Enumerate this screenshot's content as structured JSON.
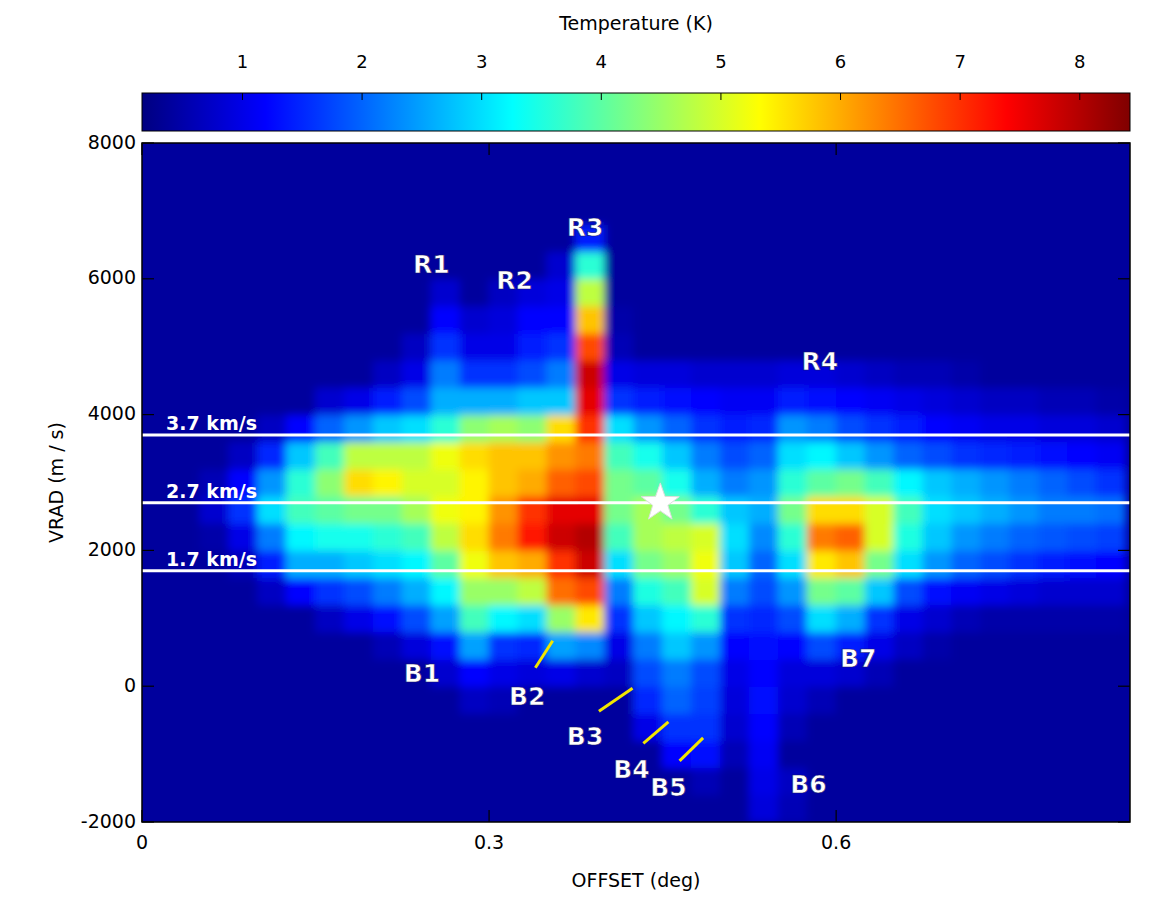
{
  "chart_data": {
    "type": "heatmap",
    "x_label": "OFFSET (deg)",
    "y_label": "VRAD (m / s)",
    "xlim": [
      0,
      0.854
    ],
    "ylim": [
      -2000,
      8000
    ],
    "xticks": [
      0,
      0.3,
      0.6
    ],
    "yticks": [
      -2000,
      0,
      2000,
      4000,
      6000,
      8000
    ],
    "color": "jet",
    "colorbar": {
      "label": "Temperature (K)",
      "range": [
        0.16,
        8.42
      ],
      "ticks": [
        1,
        2,
        3,
        4,
        5,
        6,
        7,
        8
      ]
    },
    "x": [
      0.0125,
      0.0375,
      0.0625,
      0.0875,
      0.1125,
      0.1375,
      0.1625,
      0.1875,
      0.2125,
      0.2375,
      0.2625,
      0.2875,
      0.3125,
      0.3375,
      0.3625,
      0.3875,
      0.4125,
      0.4375,
      0.4625,
      0.4875,
      0.5125,
      0.5375,
      0.5625,
      0.5875,
      0.6125,
      0.6375,
      0.6625,
      0.6875,
      0.7125,
      0.7375,
      0.7625,
      0.7875,
      0.8125,
      0.8375
    ],
    "y": [
      -1800,
      -1400,
      -1000,
      -600,
      -200,
      200,
      600,
      1000,
      1400,
      1800,
      2200,
      2600,
      3000,
      3400,
      3800,
      4200,
      4600,
      5000,
      5400,
      5800,
      6200,
      6600,
      7000,
      7400,
      7800
    ],
    "cells": [
      [
        0.4,
        0.4,
        0.4,
        0.4,
        0.4,
        0.4,
        0.4,
        0.4,
        0.4,
        0.4,
        0.4,
        0.4,
        0.4,
        0.4,
        0.4,
        0.4,
        0.4,
        0.4,
        0.4,
        0.4,
        0.4,
        0.9,
        0.6,
        0.4,
        0.4,
        0.4,
        0.4,
        0.4,
        0.4,
        0.4,
        0.4,
        0.4,
        0.4,
        0.4
      ],
      [
        0.4,
        0.4,
        0.4,
        0.4,
        0.4,
        0.4,
        0.4,
        0.4,
        0.4,
        0.4,
        0.4,
        0.4,
        0.4,
        0.4,
        0.4,
        0.4,
        0.4,
        0.4,
        0.4,
        0.6,
        0.4,
        1.0,
        0.7,
        0.4,
        0.4,
        0.4,
        0.4,
        0.4,
        0.4,
        0.4,
        0.4,
        0.4,
        0.4,
        0.4
      ],
      [
        0.4,
        0.4,
        0.4,
        0.4,
        0.4,
        0.4,
        0.4,
        0.4,
        0.4,
        0.4,
        0.4,
        0.4,
        0.4,
        0.4,
        0.4,
        0.4,
        0.4,
        0.4,
        1.2,
        1.3,
        0.6,
        1.1,
        0.4,
        0.4,
        0.4,
        0.4,
        0.4,
        0.4,
        0.4,
        0.4,
        0.4,
        0.4,
        0.4,
        0.4
      ],
      [
        0.4,
        0.4,
        0.4,
        0.4,
        0.4,
        0.4,
        0.4,
        0.4,
        0.4,
        0.4,
        0.4,
        0.4,
        0.4,
        0.4,
        0.4,
        0.4,
        0.4,
        1.0,
        1.6,
        1.6,
        0.8,
        1.2,
        0.6,
        0.4,
        0.4,
        0.4,
        0.4,
        0.4,
        0.4,
        0.4,
        0.4,
        0.4,
        0.4,
        0.4
      ],
      [
        0.4,
        0.4,
        0.4,
        0.4,
        0.4,
        0.4,
        0.4,
        0.4,
        0.4,
        0.4,
        0.4,
        0.7,
        0.6,
        0.4,
        0.4,
        0.4,
        0.4,
        1.5,
        2.0,
        1.7,
        0.9,
        1.3,
        0.8,
        0.6,
        0.4,
        0.4,
        0.4,
        0.4,
        0.4,
        0.4,
        0.4,
        0.4,
        0.4,
        0.4
      ],
      [
        0.4,
        0.4,
        0.4,
        0.4,
        0.4,
        0.4,
        0.4,
        0.4,
        0.4,
        0.4,
        0.8,
        1.2,
        1.0,
        0.9,
        1.0,
        0.8,
        0.7,
        1.8,
        2.2,
        1.8,
        1.0,
        1.2,
        0.9,
        0.9,
        0.8,
        0.6,
        0.4,
        0.4,
        0.4,
        0.4,
        0.4,
        0.4,
        0.4,
        0.4
      ],
      [
        0.4,
        0.4,
        0.4,
        0.4,
        0.4,
        0.4,
        0.4,
        0.4,
        0.6,
        0.9,
        1.3,
        2.5,
        1.6,
        1.5,
        2.5,
        2.3,
        1.0,
        2.2,
        2.8,
        2.4,
        1.2,
        1.3,
        1.2,
        1.8,
        1.4,
        1.0,
        0.7,
        0.5,
        0.4,
        0.4,
        0.4,
        0.4,
        0.4,
        0.4
      ],
      [
        0.4,
        0.4,
        0.4,
        0.4,
        0.4,
        0.4,
        0.7,
        1.0,
        1.3,
        1.8,
        2.5,
        3.8,
        3.2,
        3.0,
        4.5,
        5.5,
        1.6,
        2.8,
        3.2,
        3.6,
        1.6,
        1.5,
        1.8,
        3.0,
        2.6,
        1.6,
        1.0,
        0.8,
        0.6,
        0.5,
        0.5,
        0.5,
        0.5,
        0.5
      ],
      [
        0.4,
        0.4,
        0.4,
        0.4,
        0.7,
        1.2,
        1.6,
        1.8,
        2.2,
        2.6,
        3.2,
        4.5,
        4.5,
        4.8,
        6.5,
        6.8,
        2.2,
        3.5,
        3.8,
        5.0,
        2.2,
        1.8,
        2.4,
        4.2,
        4.0,
        2.8,
        1.8,
        1.3,
        1.1,
        1.0,
        0.9,
        0.8,
        0.8,
        0.8
      ],
      [
        0.4,
        0.4,
        0.4,
        0.6,
        1.4,
        2.6,
        2.6,
        2.8,
        3.0,
        3.2,
        4.0,
        5.2,
        5.8,
        6.0,
        7.0,
        7.8,
        3.0,
        4.2,
        4.5,
        5.2,
        2.8,
        2.0,
        3.0,
        5.5,
        5.8,
        4.2,
        3.0,
        2.4,
        2.0,
        1.8,
        1.6,
        1.4,
        1.3,
        1.2
      ],
      [
        0.4,
        0.4,
        0.5,
        1.0,
        2.2,
        3.2,
        3.4,
        3.4,
        3.6,
        3.8,
        4.8,
        5.6,
        6.4,
        7.2,
        7.8,
        8.0,
        3.8,
        4.6,
        4.8,
        5.0,
        3.0,
        2.3,
        3.6,
        6.4,
        6.6,
        5.0,
        3.5,
        2.8,
        2.4,
        2.2,
        2.0,
        1.9,
        1.8,
        1.7
      ],
      [
        0.4,
        0.4,
        0.8,
        1.6,
        3.0,
        3.8,
        4.0,
        4.2,
        4.2,
        4.6,
        5.2,
        5.4,
        6.2,
        7.0,
        7.6,
        7.6,
        4.2,
        4.6,
        4.2,
        3.6,
        2.8,
        2.6,
        4.2,
        5.6,
        5.6,
        5.0,
        3.8,
        3.0,
        2.8,
        2.6,
        2.4,
        2.2,
        2.2,
        2.1
      ],
      [
        0.4,
        0.4,
        0.6,
        1.2,
        2.4,
        3.6,
        4.4,
        5.6,
        5.4,
        5.0,
        5.0,
        5.4,
        5.8,
        6.0,
        6.6,
        6.8,
        4.2,
        4.0,
        3.4,
        2.6,
        2.2,
        2.4,
        3.6,
        4.0,
        4.2,
        3.8,
        3.2,
        2.8,
        2.6,
        2.4,
        2.2,
        2.0,
        1.8,
        1.6
      ],
      [
        0.4,
        0.4,
        0.4,
        0.7,
        1.5,
        2.8,
        3.8,
        4.8,
        4.8,
        4.8,
        5.2,
        5.6,
        5.8,
        5.8,
        6.2,
        6.4,
        3.8,
        3.4,
        2.8,
        2.2,
        1.8,
        2.0,
        3.0,
        3.2,
        2.8,
        2.4,
        2.0,
        1.8,
        1.6,
        1.5,
        1.4,
        1.3,
        1.2,
        1.1
      ],
      [
        0.4,
        0.4,
        0.4,
        0.4,
        0.7,
        1.2,
        2.0,
        2.4,
        2.8,
        3.0,
        3.6,
        4.4,
        4.6,
        4.4,
        5.6,
        7.0,
        3.0,
        2.4,
        2.0,
        1.6,
        1.4,
        1.5,
        2.4,
        2.2,
        1.8,
        1.6,
        1.4,
        1.2,
        1.1,
        1.0,
        1.0,
        0.9,
        0.9,
        0.8
      ],
      [
        0.4,
        0.4,
        0.4,
        0.4,
        0.4,
        0.4,
        0.8,
        1.0,
        1.4,
        1.8,
        2.6,
        2.6,
        2.6,
        2.8,
        2.8,
        7.6,
        1.6,
        1.4,
        1.3,
        1.2,
        1.1,
        1.1,
        1.4,
        1.3,
        1.2,
        1.1,
        1.0,
        0.9,
        0.8,
        0.7,
        0.7,
        0.6,
        0.6,
        0.5
      ],
      [
        0.4,
        0.4,
        0.4,
        0.4,
        0.4,
        0.4,
        0.4,
        0.4,
        0.7,
        1.0,
        2.2,
        1.6,
        1.6,
        1.8,
        2.2,
        7.8,
        1.0,
        0.9,
        0.9,
        0.8,
        0.8,
        0.8,
        0.9,
        0.9,
        0.8,
        0.7,
        0.6,
        0.6,
        0.5,
        0.4,
        0.4,
        0.4,
        0.4,
        0.4
      ],
      [
        0.4,
        0.4,
        0.4,
        0.4,
        0.4,
        0.4,
        0.4,
        0.4,
        0.4,
        0.7,
        1.6,
        1.0,
        1.0,
        1.4,
        1.6,
        6.8,
        0.6,
        0.4,
        0.4,
        0.4,
        0.4,
        0.4,
        0.4,
        0.4,
        0.4,
        0.4,
        0.4,
        0.4,
        0.4,
        0.4,
        0.4,
        0.4,
        0.4,
        0.4
      ],
      [
        0.4,
        0.4,
        0.4,
        0.4,
        0.4,
        0.4,
        0.4,
        0.4,
        0.4,
        0.4,
        1.2,
        0.8,
        0.9,
        1.2,
        1.2,
        5.8,
        0.5,
        0.4,
        0.4,
        0.4,
        0.4,
        0.4,
        0.4,
        0.4,
        0.4,
        0.4,
        0.4,
        0.4,
        0.4,
        0.4,
        0.4,
        0.4,
        0.4,
        0.4
      ],
      [
        0.4,
        0.4,
        0.4,
        0.4,
        0.4,
        0.4,
        0.4,
        0.4,
        0.4,
        0.4,
        0.8,
        0.4,
        0.7,
        0.9,
        1.0,
        4.8,
        0.4,
        0.4,
        0.4,
        0.4,
        0.4,
        0.4,
        0.4,
        0.4,
        0.4,
        0.4,
        0.4,
        0.4,
        0.4,
        0.4,
        0.4,
        0.4,
        0.4,
        0.4
      ],
      [
        0.4,
        0.4,
        0.4,
        0.4,
        0.4,
        0.4,
        0.4,
        0.4,
        0.4,
        0.4,
        0.4,
        0.4,
        0.4,
        0.4,
        0.8,
        3.6,
        0.4,
        0.4,
        0.4,
        0.4,
        0.4,
        0.4,
        0.4,
        0.4,
        0.4,
        0.4,
        0.4,
        0.4,
        0.4,
        0.4,
        0.4,
        0.4,
        0.4,
        0.4
      ],
      [
        0.4,
        0.4,
        0.4,
        0.4,
        0.4,
        0.4,
        0.4,
        0.4,
        0.4,
        0.4,
        0.4,
        0.4,
        0.4,
        0.4,
        0.4,
        1.4,
        0.4,
        0.4,
        0.4,
        0.4,
        0.4,
        0.4,
        0.4,
        0.4,
        0.4,
        0.4,
        0.4,
        0.4,
        0.4,
        0.4,
        0.4,
        0.4,
        0.4,
        0.4
      ],
      [
        0.4,
        0.4,
        0.4,
        0.4,
        0.4,
        0.4,
        0.4,
        0.4,
        0.4,
        0.4,
        0.4,
        0.4,
        0.4,
        0.4,
        0.4,
        0.4,
        0.4,
        0.4,
        0.4,
        0.4,
        0.4,
        0.4,
        0.4,
        0.4,
        0.4,
        0.4,
        0.4,
        0.4,
        0.4,
        0.4,
        0.4,
        0.4,
        0.4,
        0.4
      ],
      [
        0.4,
        0.4,
        0.4,
        0.4,
        0.4,
        0.4,
        0.4,
        0.4,
        0.4,
        0.4,
        0.4,
        0.4,
        0.4,
        0.4,
        0.4,
        0.4,
        0.4,
        0.4,
        0.4,
        0.4,
        0.4,
        0.4,
        0.4,
        0.4,
        0.4,
        0.4,
        0.4,
        0.4,
        0.4,
        0.4,
        0.4,
        0.4,
        0.4,
        0.4
      ],
      [
        0.4,
        0.4,
        0.4,
        0.4,
        0.4,
        0.4,
        0.4,
        0.4,
        0.4,
        0.4,
        0.4,
        0.4,
        0.4,
        0.4,
        0.4,
        0.4,
        0.4,
        0.4,
        0.4,
        0.4,
        0.4,
        0.4,
        0.4,
        0.4,
        0.4,
        0.4,
        0.4,
        0.4,
        0.4,
        0.4,
        0.4,
        0.4,
        0.4,
        0.4
      ]
    ],
    "reference_lines": [
      {
        "value": 3700,
        "label": "3.7 km/s"
      },
      {
        "value": 2700,
        "label": "2.7 km/s"
      },
      {
        "value": 1700,
        "label": "1.7 km/s"
      }
    ],
    "markers": [
      {
        "x": 0.448,
        "y": 2700,
        "marker": "star"
      }
    ],
    "annotations": [
      {
        "text": "R1",
        "x": 0.25,
        "y": 6190
      },
      {
        "text": "R2",
        "x": 0.322,
        "y": 5960
      },
      {
        "text": "R3",
        "x": 0.383,
        "y": 6740
      },
      {
        "text": "R4",
        "x": 0.586,
        "y": 4760
      },
      {
        "text": "B1",
        "x": 0.242,
        "y": 160
      },
      {
        "text": "B2",
        "x": 0.333,
        "y": -175,
        "arrow_to": [
          0.355,
          670
        ]
      },
      {
        "text": "B3",
        "x": 0.383,
        "y": -760,
        "arrow_to": [
          0.424,
          -30
        ]
      },
      {
        "text": "B4",
        "x": 0.423,
        "y": -1255,
        "arrow_to": [
          0.455,
          -525
        ]
      },
      {
        "text": "B5",
        "x": 0.455,
        "y": -1520,
        "arrow_to": [
          0.485,
          -760
        ]
      },
      {
        "text": "B6",
        "x": 0.576,
        "y": -1475
      },
      {
        "text": "B7",
        "x": 0.619,
        "y": 380
      }
    ]
  }
}
